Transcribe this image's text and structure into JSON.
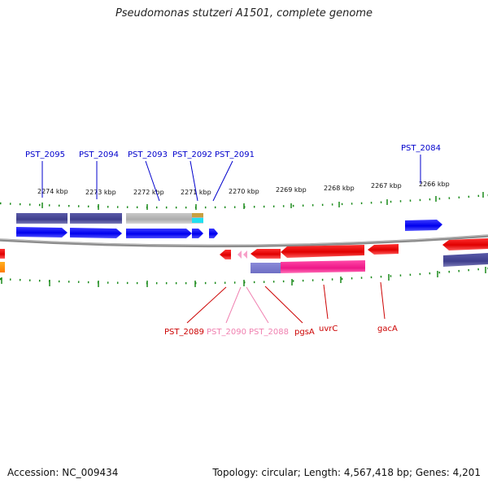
{
  "title": "Pseudomonas stutzeri A1501, complete genome",
  "footer": {
    "accession": "Accession: NC_009434",
    "summary": "Topology: circular; Length: 4,567,418 bp; Genes: 4,201"
  },
  "axis_ticks": [
    "2274 kbp",
    "2273 kbp",
    "2272 kbp",
    "2271 kbp",
    "2270 kbp",
    "2269 kbp",
    "2268 kbp",
    "2267 kbp",
    "2266 kbp"
  ],
  "genes_top": [
    {
      "name": "PST_2095",
      "color": "#0000cc"
    },
    {
      "name": "PST_2094",
      "color": "#0000cc"
    },
    {
      "name": "PST_2093",
      "color": "#0000cc"
    },
    {
      "name": "PST_2092",
      "color": "#0000cc"
    },
    {
      "name": "PST_2091",
      "color": "#0000cc"
    },
    {
      "name": "PST_2084",
      "color": "#0000cc"
    }
  ],
  "genes_bottom": [
    {
      "name": "PST_2089",
      "color": "#cc0000"
    },
    {
      "name": "PST_2090",
      "color": "#f080b0"
    },
    {
      "name": "PST_2088",
      "color": "#f080b0"
    },
    {
      "name": "pgsA",
      "color": "#cc0000"
    },
    {
      "name": "uvrC",
      "color": "#cc0000"
    },
    {
      "name": "gacA",
      "color": "#cc0000"
    }
  ],
  "colors": {
    "forward_cds": "#0000ff",
    "reverse_cds": "#ff0000",
    "backbone": "#808080",
    "tick": "#1a8a1a",
    "blast_dark": "#4a4a9a",
    "blast_grey": "#b4b4b4",
    "blast_pink": "#ff1493"
  }
}
